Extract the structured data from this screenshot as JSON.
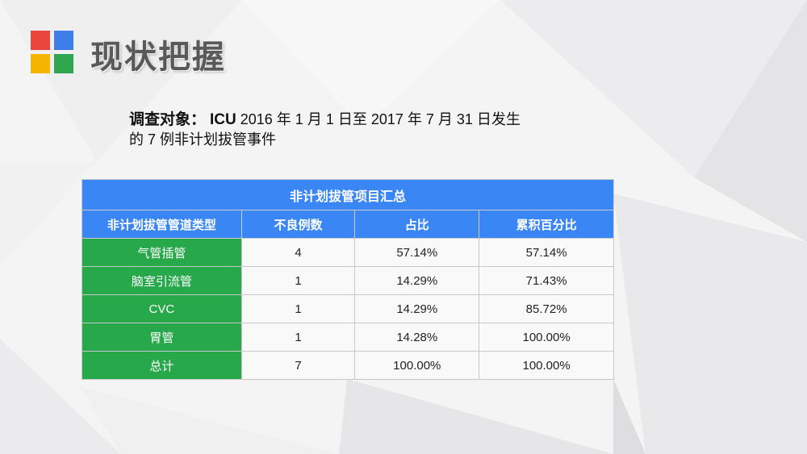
{
  "slide": {
    "title": "现状把握",
    "subject_label": "调查对象：",
    "subject_icu": "ICU",
    "subject_line1": " 2016 年 1 月 1 日至 2017 年 7 月 31 日发生",
    "subject_line2": "的 7 例非计划拔管事件"
  },
  "table": {
    "caption": "非计划拔管项目汇总",
    "headers": [
      "非计划拔管管道类型",
      "不良例数",
      "占比",
      "累积百分比"
    ],
    "rows": [
      [
        "气管插管",
        "4",
        "57.14%",
        "57.14%"
      ],
      [
        "脑室引流管",
        "1",
        "14.29%",
        "71.43%"
      ],
      [
        "CVC",
        "1",
        "14.29%",
        "85.72%"
      ],
      [
        "胃管",
        "1",
        "14.28%",
        "100.00%"
      ],
      [
        "总计",
        "7",
        "100.00%",
        "100.00%"
      ]
    ]
  },
  "colors": {
    "header_blue": "#3a86f5",
    "type_green": "#27a84a",
    "logo": [
      "#e8453c",
      "#3f7ee8",
      "#f5b400",
      "#2fa64d"
    ]
  }
}
